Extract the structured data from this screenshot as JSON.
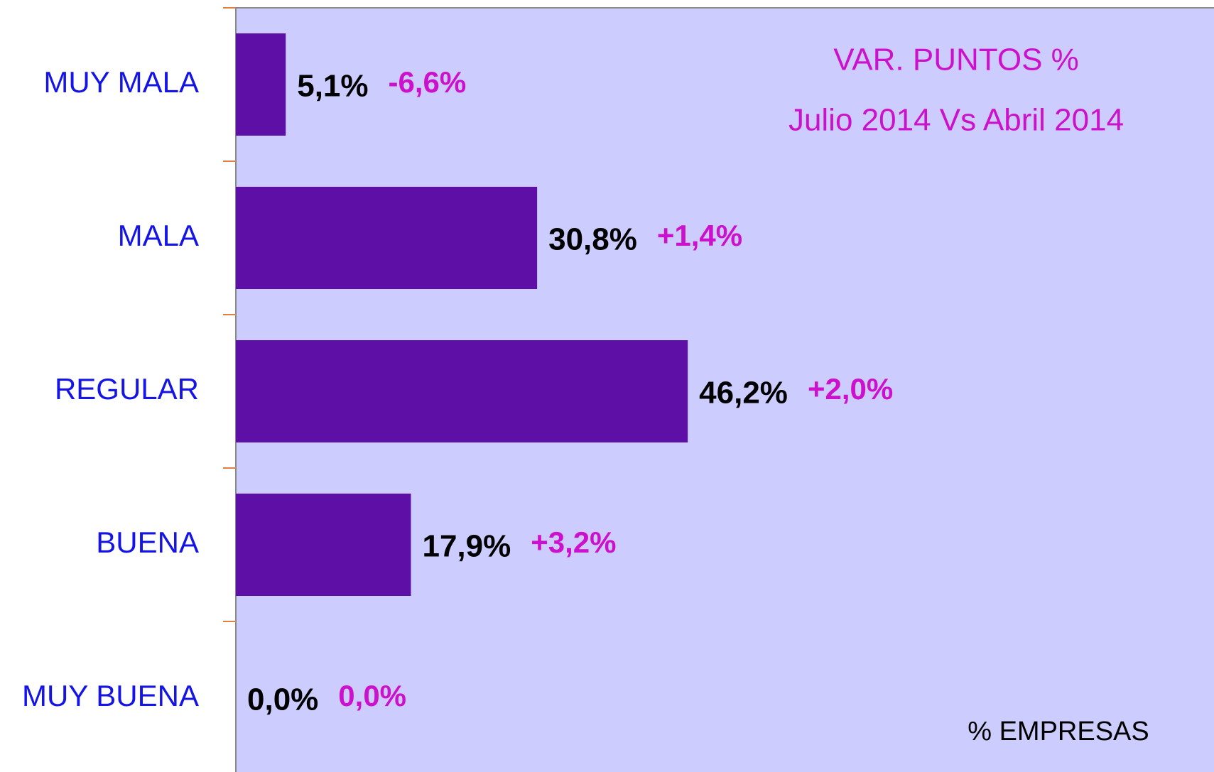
{
  "chart_data": {
    "type": "bar",
    "orientation": "horizontal",
    "title": "VAR. PUNTOS %",
    "subtitle": "Julio 2014 Vs Abril 2014",
    "x_label": "% EMPRESAS",
    "categories": [
      "MUY MALA",
      "MALA",
      "REGULAR",
      "BUENA",
      "MUY BUENA"
    ],
    "values": [
      5.1,
      30.8,
      46.2,
      17.9,
      0.0
    ],
    "value_labels": [
      "5,1%",
      "30,8%",
      "46,2%",
      "17,9%",
      "0,0%"
    ],
    "annotations": [
      "-6,6%",
      "+1,4%",
      "+2,0%",
      "+3,2%",
      "0,0%"
    ],
    "color": "#5e10a6",
    "background": "#ccccff",
    "xlim": [
      0,
      100
    ]
  }
}
